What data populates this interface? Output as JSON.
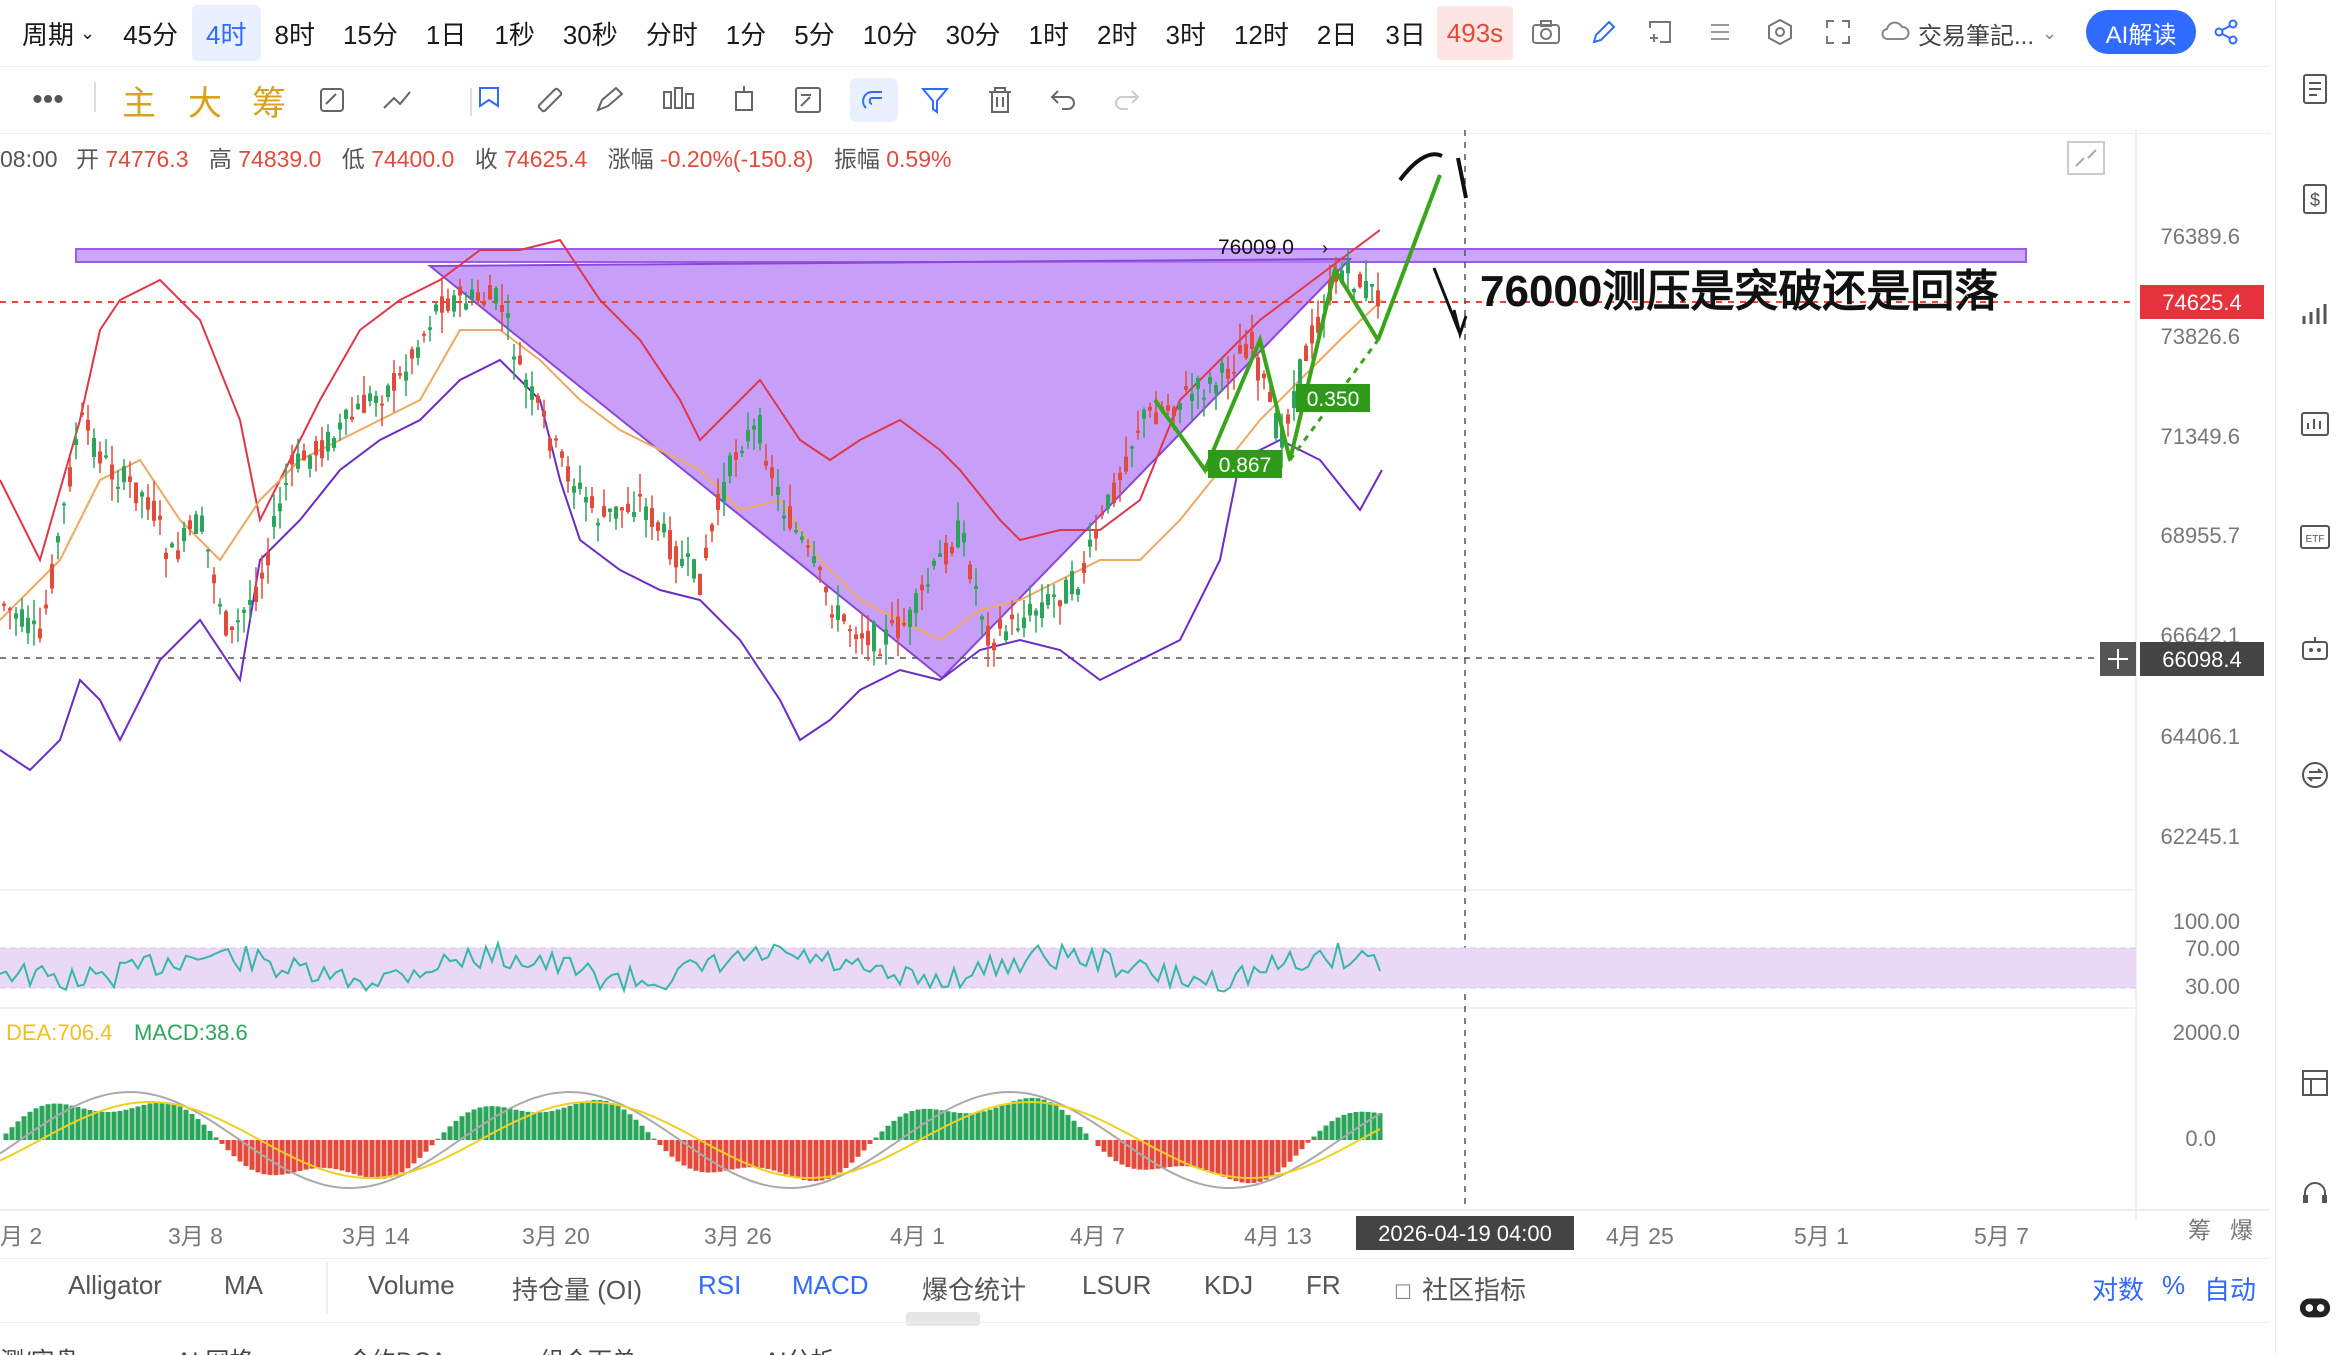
{
  "timeframes": [
    "周期",
    "45分",
    "4时",
    "8时",
    "15分",
    "1日",
    "1秒",
    "30秒",
    "分时",
    "1分",
    "5分",
    "10分",
    "30分",
    "1时",
    "2时",
    "3时",
    "12时",
    "2日",
    "3日"
  ],
  "active_timeframe": "4时",
  "countdown": "493s",
  "notes_label": "交易筆記...",
  "ai_label": "AI解读",
  "drawing_tools": {
    "main": "主",
    "big": "大",
    "chips": "筹"
  },
  "ohlc": {
    "time": "08:00",
    "open_label": "开",
    "open": "74776.3",
    "high_label": "高",
    "high": "74839.0",
    "low_label": "低",
    "low": "74400.0",
    "close_label": "收",
    "close": "74625.4",
    "change_label": "涨幅",
    "change": "-0.20%(-150.8)",
    "amp_label": "振幅",
    "amp": "0.59%"
  },
  "price_axis": [
    "76389.6",
    "73826.6",
    "71349.6",
    "68955.7",
    "66642.1",
    "64406.1",
    "62245.1"
  ],
  "current_price": "74625.4",
  "crosshair_price": "66098.4",
  "resistance_label": "76009.0",
  "annotation_text": "76000测压是突破还是回落",
  "fib_labels": [
    "0.350",
    "0.867"
  ],
  "rsi_axis": [
    "100.00",
    "70.00",
    "30.00"
  ],
  "macd_axis": [
    "2000.0",
    "0.0"
  ],
  "macd_readout": {
    "dea": "DEA:706.4",
    "macd": "MACD:38.6"
  },
  "date_axis": [
    "月 2",
    "3月 8",
    "3月 14",
    "3月 20",
    "3月 26",
    "4月 1",
    "4月 7",
    "4月 13",
    "4月 25",
    "5月 1",
    "5月 7"
  ],
  "crosshair_date": "2026-04-19 04:00",
  "axis_corner": [
    "筹",
    "爆"
  ],
  "indicators": [
    "Alligator",
    "MA",
    "Volume",
    "持仓量 (OI)",
    "RSI",
    "MACD",
    "爆仓统计",
    "LSUR",
    "KDJ",
    "FR",
    "社区指标"
  ],
  "active_indicators": [
    "RSI",
    "MACD"
  ],
  "scale_options": [
    "对数",
    "%",
    "自动"
  ],
  "bottom_tabs": [
    "测/实盘",
    "AI 网格",
    "合约DCA",
    "组合下单",
    "AI分析"
  ],
  "colors": {
    "accent": "#2f6bff",
    "up": "#2aa55a",
    "down": "#e24a3b",
    "pattern": "#b57ff5",
    "annotation_green": "#3aa41b"
  }
}
